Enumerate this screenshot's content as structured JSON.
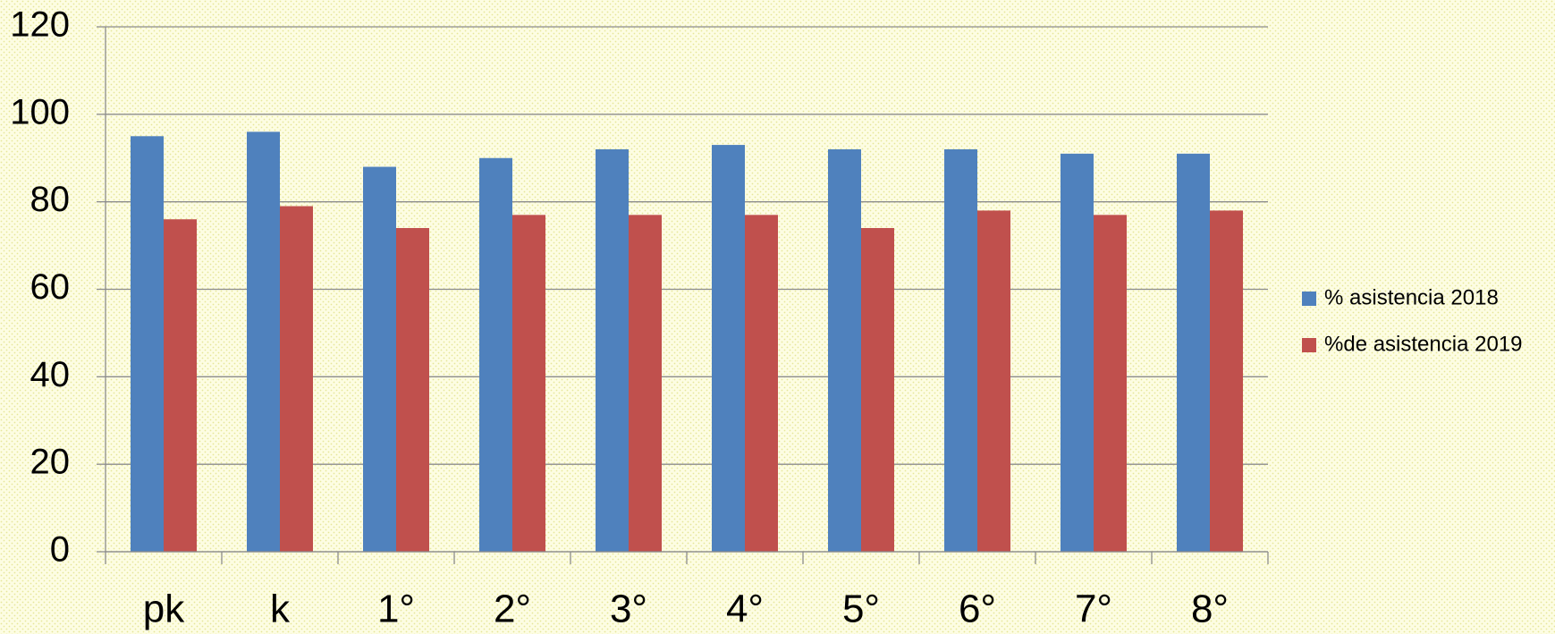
{
  "chart_data": {
    "type": "bar",
    "categories": [
      "pk",
      "k",
      "1°",
      "2°",
      "3°",
      "4°",
      "5°",
      "6°",
      "7°",
      "8°"
    ],
    "series": [
      {
        "name": "% asistencia 2018",
        "color": "#4f81bd",
        "values": [
          95,
          96,
          88,
          90,
          92,
          93,
          92,
          92,
          91,
          91
        ]
      },
      {
        "name": "%de asistencia 2019",
        "color": "#c0504d",
        "values": [
          76,
          79,
          74,
          77,
          77,
          77,
          74,
          78,
          77,
          78
        ]
      }
    ],
    "ylim": [
      0,
      120
    ],
    "yticks": [
      0,
      20,
      40,
      60,
      80,
      100,
      120
    ],
    "grid": true,
    "legend": "right"
  }
}
